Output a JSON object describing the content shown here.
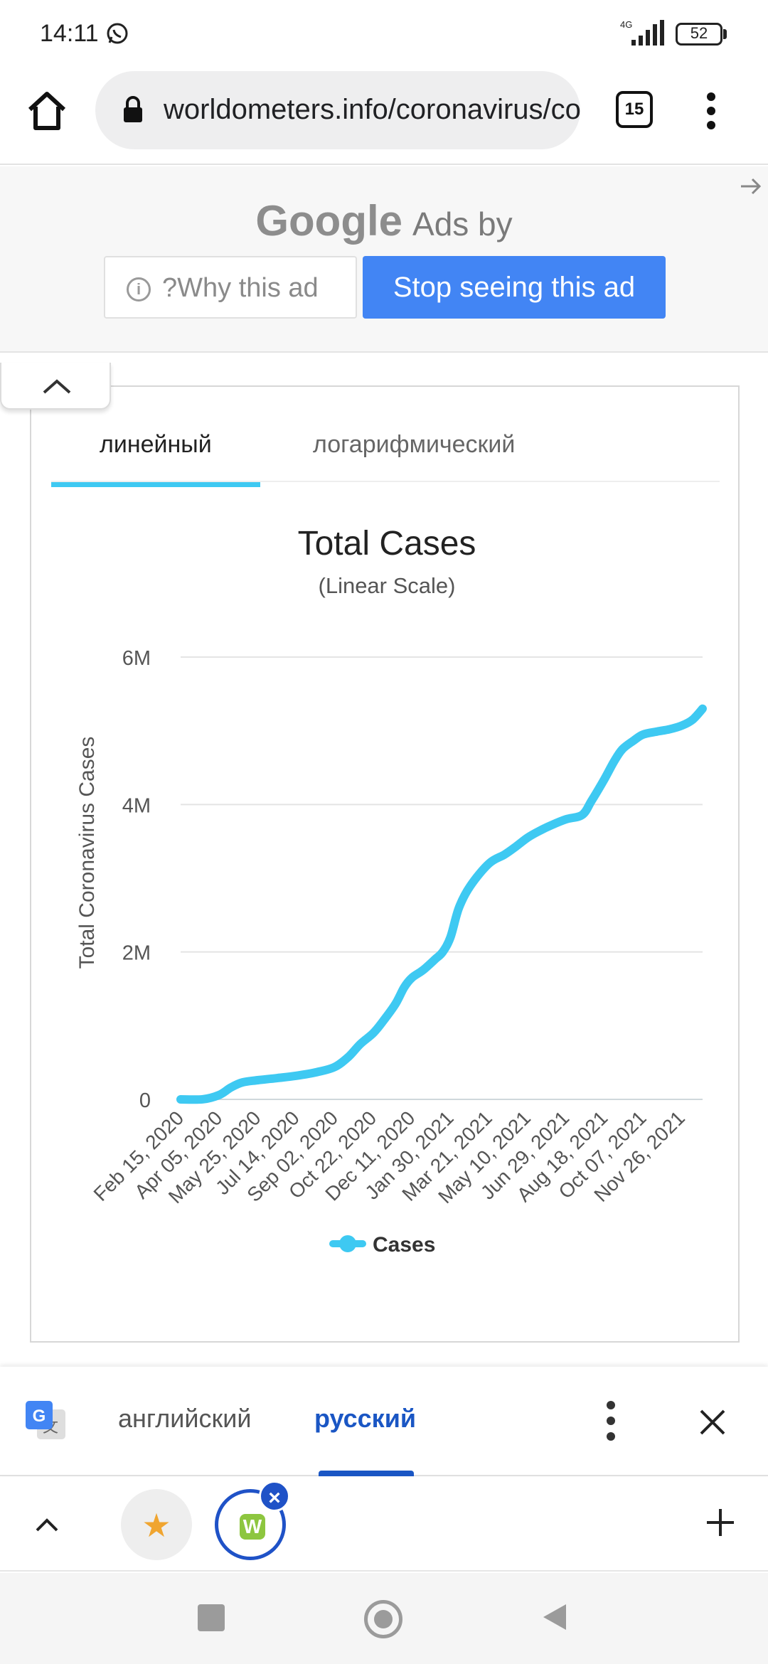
{
  "status_bar": {
    "time": "14:11",
    "network": "4G",
    "battery": "52"
  },
  "browser": {
    "url": "worldometers.info/coronavirus/country/russia/",
    "tab_count": "15"
  },
  "ad": {
    "brand": "Google",
    "title_suffix": "Ads by",
    "why_label": "?Why this ad",
    "stop_label": "Stop seeing this ad"
  },
  "chart_tabs": {
    "linear": "линейный",
    "log": "логарифмический"
  },
  "chart_data": {
    "type": "line",
    "title": "Total Cases",
    "subtitle": "(Linear Scale)",
    "ylabel": "Total Coronavirus Cases",
    "ylim": [
      0,
      6000000
    ],
    "yticks": [
      {
        "value": 0,
        "label": "0"
      },
      {
        "value": 2000000,
        "label": "2M"
      },
      {
        "value": 4000000,
        "label": "4M"
      },
      {
        "value": 6000000,
        "label": "6M"
      }
    ],
    "xlim": [
      "2020-02-15",
      "2021-12-23"
    ],
    "xtick_labels": [
      "Feb 15, 2020",
      "Apr 05, 2020",
      "May 25, 2020",
      "Jul 14, 2020",
      "Sep 02, 2020",
      "Oct 22, 2020",
      "Dec 11, 2020",
      "Jan 30, 2021",
      "Mar 21, 2021",
      "May 10, 2021",
      "Jun 29, 2021",
      "Aug 18, 2021",
      "Oct 07, 2021",
      "Nov 26, 2021"
    ],
    "x_dates": [
      "2020-02-15",
      "2020-03-15",
      "2020-04-05",
      "2020-04-20",
      "2020-05-05",
      "2020-05-25",
      "2020-06-20",
      "2020-07-14",
      "2020-08-10",
      "2020-09-02",
      "2020-09-20",
      "2020-10-05",
      "2020-10-22",
      "2020-11-05",
      "2020-11-20",
      "2020-12-01",
      "2020-12-11",
      "2020-12-25",
      "2021-01-10",
      "2021-01-20",
      "2021-01-30",
      "2021-02-10",
      "2021-02-25",
      "2021-03-21",
      "2021-04-10",
      "2021-04-25",
      "2021-05-10",
      "2021-05-25",
      "2021-06-10",
      "2021-06-29",
      "2021-07-20",
      "2021-08-01",
      "2021-08-18",
      "2021-08-30",
      "2021-09-10",
      "2021-09-25",
      "2021-10-07",
      "2021-10-25",
      "2021-11-10",
      "2021-11-26",
      "2021-12-10",
      "2021-12-23"
    ],
    "series": [
      {
        "name": "Cases",
        "color": "#3ec9f2",
        "values": [
          0,
          2000,
          60000,
          160000,
          230000,
          260000,
          290000,
          320000,
          370000,
          440000,
          580000,
          750000,
          900000,
          1080000,
          1300000,
          1520000,
          1650000,
          1750000,
          1900000,
          2000000,
          2200000,
          2600000,
          2900000,
          3200000,
          3320000,
          3430000,
          3550000,
          3640000,
          3720000,
          3800000,
          3860000,
          4050000,
          4350000,
          4580000,
          4750000,
          4870000,
          4950000,
          4990000,
          5020000,
          5070000,
          5150000,
          5300000
        ]
      }
    ],
    "legend": [
      "Cases"
    ],
    "legend_position": "bottom",
    "grid": true
  },
  "translate_bar": {
    "source_lang": "английский",
    "target_lang": "русский"
  },
  "icons": {
    "home": "home-icon",
    "lock": "lock-icon",
    "menu": "more-vert-icon",
    "translate": "google-translate-icon",
    "close": "close-icon",
    "star": "star-icon",
    "plus": "plus-icon"
  }
}
